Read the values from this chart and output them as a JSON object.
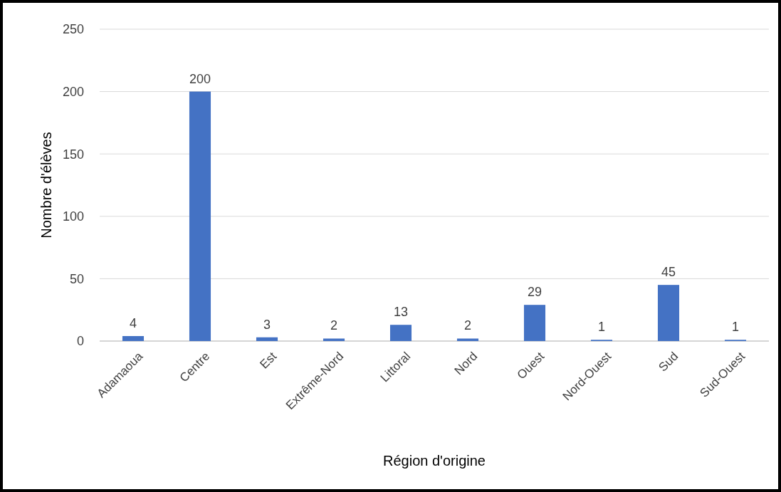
{
  "chart_data": {
    "type": "bar",
    "xlabel": "Région d'origine",
    "ylabel": "Nombre d'élèves",
    "categories": [
      "Adamaoua",
      "Centre",
      "Est",
      "Extrême-Nord",
      "Littoral",
      "Nord",
      "Ouest",
      "Nord-Ouest",
      "Sud",
      "Sud-Ouest"
    ],
    "values": [
      4,
      200,
      3,
      2,
      13,
      2,
      29,
      1,
      45,
      1
    ],
    "color": "#4472c4",
    "ylim": [
      0,
      250
    ],
    "yticks": [
      0,
      50,
      100,
      150,
      200,
      250
    ],
    "grid": "y",
    "data_labels": true
  }
}
